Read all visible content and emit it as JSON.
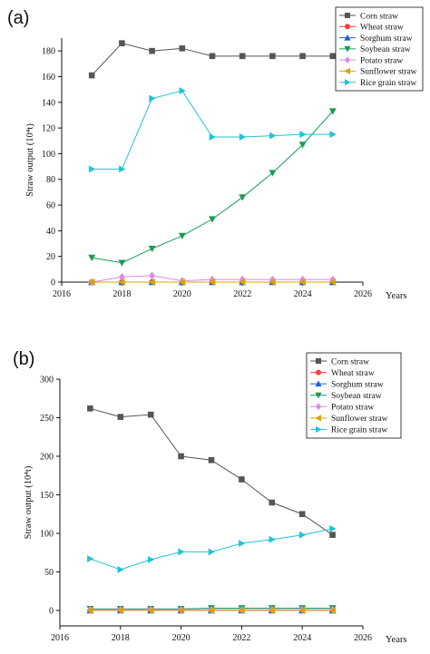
{
  "chart_data": [
    {
      "panel_label": "(a)",
      "type": "line",
      "xlabel": "Years",
      "ylabel": "Straw output (10⁴t)",
      "xlim": [
        2016,
        2026
      ],
      "ylim": [
        0,
        190
      ],
      "xticks": [
        2016,
        2018,
        2020,
        2022,
        2024,
        2026
      ],
      "yticks": [
        0,
        20,
        40,
        60,
        80,
        100,
        120,
        140,
        160,
        180
      ],
      "x": [
        2017,
        2018,
        2019,
        2020,
        2021,
        2022,
        2023,
        2024,
        2025
      ],
      "legend_position": "top-right",
      "series": [
        {
          "name": "Corn straw",
          "color": "#555555",
          "marker": "square",
          "values": [
            161,
            186,
            180,
            182,
            176,
            176,
            176,
            176,
            176
          ]
        },
        {
          "name": "Wheat straw",
          "color": "#ff3b3b",
          "marker": "circle",
          "values": [
            0,
            0,
            0,
            0,
            0,
            0,
            0,
            0,
            0
          ]
        },
        {
          "name": "Sorghum straw",
          "color": "#1f5fd6",
          "marker": "triangle-up",
          "values": [
            0,
            0,
            0,
            0,
            0,
            0,
            0,
            0,
            0
          ]
        },
        {
          "name": "Soybean straw",
          "color": "#1a9a55",
          "marker": "triangle-down",
          "values": [
            19,
            15,
            26,
            36,
            49,
            66,
            85,
            107,
            133
          ]
        },
        {
          "name": "Potato straw",
          "color": "#d88ae6",
          "marker": "diamond",
          "values": [
            0,
            4,
            5,
            1,
            2,
            2,
            2,
            2,
            2
          ]
        },
        {
          "name": "Sunflower straw",
          "color": "#d9a300",
          "marker": "triangle-left",
          "values": [
            0,
            0,
            0,
            0,
            0,
            0,
            0,
            0,
            0
          ]
        },
        {
          "name": "Rice grain straw",
          "color": "#1fc4d6",
          "marker": "triangle-right",
          "values": [
            88,
            88,
            143,
            149,
            113,
            113,
            114,
            115,
            115
          ]
        }
      ]
    },
    {
      "panel_label": "(b)",
      "type": "line",
      "xlabel": "Years",
      "ylabel": "Straw output (10⁴t)",
      "xlim": [
        2016,
        2026
      ],
      "ylim": [
        -20,
        300
      ],
      "xticks": [
        2016,
        2018,
        2020,
        2022,
        2024,
        2026
      ],
      "yticks": [
        0,
        50,
        100,
        150,
        200,
        250,
        300
      ],
      "x": [
        2017,
        2018,
        2019,
        2020,
        2021,
        2022,
        2023,
        2024,
        2025
      ],
      "legend_position": "top-right",
      "series": [
        {
          "name": "Corn straw",
          "color": "#555555",
          "marker": "square",
          "values": [
            262,
            251,
            254,
            200,
            195,
            170,
            140,
            125,
            98
          ]
        },
        {
          "name": "Wheat straw",
          "color": "#ff3b3b",
          "marker": "circle",
          "values": [
            0,
            0,
            0,
            0,
            0,
            0,
            0,
            0,
            0
          ]
        },
        {
          "name": "Sorghum straw",
          "color": "#1f5fd6",
          "marker": "triangle-up",
          "values": [
            0,
            0,
            0,
            0,
            0,
            0,
            0,
            0,
            0
          ]
        },
        {
          "name": "Soybean straw",
          "color": "#1a9a55",
          "marker": "triangle-down",
          "values": [
            2,
            2,
            2,
            2,
            3,
            3,
            3,
            3,
            3
          ]
        },
        {
          "name": "Potato straw",
          "color": "#d88ae6",
          "marker": "diamond",
          "values": [
            1,
            1,
            1,
            1,
            1,
            1,
            1,
            1,
            1
          ]
        },
        {
          "name": "Sunflower straw",
          "color": "#d9a300",
          "marker": "triangle-left",
          "values": [
            0,
            0,
            0,
            0,
            0,
            0,
            0,
            0,
            0
          ]
        },
        {
          "name": "Rice grain straw",
          "color": "#1fc4d6",
          "marker": "triangle-right",
          "values": [
            67,
            53,
            66,
            76,
            76,
            87,
            92,
            98,
            106
          ]
        }
      ]
    }
  ]
}
